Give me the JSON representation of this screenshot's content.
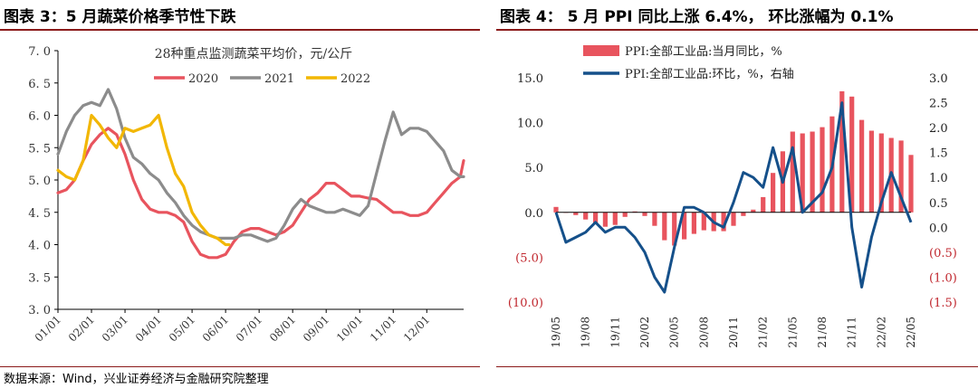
{
  "figures": [
    {
      "title": "图表 3：5 月蔬菜价格季节性下跌",
      "chart_data": {
        "type": "line",
        "title": "28种重点监测蔬菜平均价，元/公斤",
        "xlabel": "",
        "ylabel": "",
        "x_tick_labels": [
          "01/01",
          "02/01",
          "03/01",
          "04/01",
          "05/01",
          "06/01",
          "07/01",
          "08/01",
          "09/01",
          "10/01",
          "11/01",
          "12/01"
        ],
        "y_tick_labels": [
          "3. 0",
          "3. 5",
          "4. 0",
          "4. 5",
          "5. 0",
          "5. 5",
          "6. 0",
          "6. 5",
          "7. 0"
        ],
        "ylim": [
          3.0,
          7.0
        ],
        "legend_position": "top-center",
        "x_unit": "month of year (1 = 01/01)",
        "series": [
          {
            "name": "2020",
            "color": "#e8545e",
            "x": [
              1.0,
              1.25,
              1.5,
              1.75,
              2.0,
              2.25,
              2.5,
              2.75,
              3.0,
              3.25,
              3.5,
              3.75,
              4.0,
              4.25,
              4.5,
              4.75,
              5.0,
              5.25,
              5.5,
              5.75,
              6.0,
              6.25,
              6.5,
              6.75,
              7.0,
              7.25,
              7.5,
              7.75,
              8.0,
              8.25,
              8.5,
              8.75,
              9.0,
              9.25,
              9.5,
              9.75,
              10.0,
              10.25,
              10.5,
              10.75,
              11.0,
              11.25,
              11.5,
              11.75,
              12.0,
              12.25,
              12.5,
              12.75,
              13.0,
              13.1
            ],
            "values": [
              4.8,
              4.85,
              5.0,
              5.3,
              5.55,
              5.7,
              5.8,
              5.7,
              5.4,
              5.0,
              4.7,
              4.55,
              4.5,
              4.5,
              4.45,
              4.35,
              4.05,
              3.85,
              3.8,
              3.8,
              3.85,
              4.05,
              4.2,
              4.25,
              4.25,
              4.2,
              4.15,
              4.2,
              4.3,
              4.5,
              4.7,
              4.8,
              4.95,
              4.95,
              4.85,
              4.75,
              4.75,
              4.72,
              4.7,
              4.6,
              4.5,
              4.5,
              4.45,
              4.45,
              4.5,
              4.65,
              4.8,
              4.95,
              5.05,
              5.3
            ]
          },
          {
            "name": "2021",
            "color": "#8c8c8c",
            "x": [
              1.0,
              1.25,
              1.5,
              1.75,
              2.0,
              2.25,
              2.5,
              2.75,
              3.0,
              3.25,
              3.5,
              3.75,
              4.0,
              4.25,
              4.5,
              4.75,
              5.0,
              5.25,
              5.5,
              5.75,
              6.0,
              6.25,
              6.5,
              6.75,
              7.0,
              7.25,
              7.5,
              7.75,
              8.0,
              8.25,
              8.5,
              8.75,
              9.0,
              9.25,
              9.5,
              9.75,
              10.0,
              10.25,
              10.5,
              10.75,
              11.0,
              11.25,
              11.5,
              11.75,
              12.0,
              12.25,
              12.5,
              12.75,
              13.0,
              13.1
            ],
            "values": [
              5.4,
              5.75,
              6.0,
              6.15,
              6.2,
              6.15,
              6.4,
              6.1,
              5.65,
              5.35,
              5.25,
              5.1,
              5.0,
              4.8,
              4.65,
              4.45,
              4.3,
              4.2,
              4.15,
              4.1,
              4.1,
              4.1,
              4.15,
              4.15,
              4.1,
              4.05,
              4.1,
              4.3,
              4.55,
              4.7,
              4.6,
              4.55,
              4.5,
              4.5,
              4.55,
              4.5,
              4.45,
              4.6,
              5.1,
              5.6,
              6.05,
              5.7,
              5.8,
              5.8,
              5.75,
              5.6,
              5.45,
              5.15,
              5.05,
              5.05
            ]
          },
          {
            "name": "2022",
            "color": "#f2b705",
            "x": [
              1.0,
              1.25,
              1.5,
              1.75,
              2.0,
              2.25,
              2.5,
              2.75,
              3.0,
              3.25,
              3.5,
              3.75,
              4.0,
              4.25,
              4.5,
              4.75,
              5.0,
              5.25,
              5.5,
              5.75,
              6.0,
              6.1
            ],
            "values": [
              5.15,
              5.05,
              5.0,
              5.3,
              6.0,
              5.85,
              5.65,
              5.5,
              5.8,
              5.75,
              5.8,
              5.85,
              6.0,
              5.5,
              5.1,
              4.9,
              4.5,
              4.3,
              4.15,
              4.1,
              4.0,
              4.0
            ]
          }
        ]
      }
    },
    {
      "title": "图表 4： 5 月 PPI 同比上涨 6.4%， 环比涨幅为 0.1%",
      "chart_data": {
        "type": "bar+line",
        "title": "",
        "x_tick_labels": [
          "19/05",
          "19/08",
          "19/11",
          "20/02",
          "20/05",
          "20/08",
          "20/11",
          "21/02",
          "21/05",
          "21/08",
          "21/11",
          "22/02",
          "22/05"
        ],
        "left_y_tick_labels": [
          "15.0",
          "10.0",
          "5.0",
          "0.0",
          "(5.0)",
          "(10.0)"
        ],
        "right_y_tick_labels": [
          "3.0",
          "2.5",
          "2.0",
          "1.5",
          "1.0",
          "0.5",
          "0.0",
          "(0.5)",
          "(1.0)",
          "(1.5)"
        ],
        "ylim_left": [
          -10,
          15
        ],
        "ylim_right": [
          -1.5,
          3.0
        ],
        "legend_position": "top-left",
        "categories": [
          "19/05",
          "19/06",
          "19/07",
          "19/08",
          "19/09",
          "19/10",
          "19/11",
          "19/12",
          "20/01",
          "20/02",
          "20/03",
          "20/04",
          "20/05",
          "20/06",
          "20/07",
          "20/08",
          "20/09",
          "20/10",
          "20/11",
          "20/12",
          "21/01",
          "21/02",
          "21/03",
          "21/04",
          "21/05",
          "21/06",
          "21/07",
          "21/08",
          "21/09",
          "21/10",
          "21/11",
          "21/12",
          "22/01",
          "22/02",
          "22/03",
          "22/04",
          "22/05"
        ],
        "series": [
          {
            "name": "PPI:全部工业品:当月同比，%",
            "axis": "left",
            "kind": "bar",
            "color": "#e8545e",
            "values": [
              0.6,
              0.0,
              -0.3,
              -0.8,
              -1.2,
              -1.6,
              -1.4,
              -0.5,
              0.1,
              -0.4,
              -1.5,
              -3.1,
              -3.7,
              -3.0,
              -2.4,
              -2.0,
              -2.1,
              -2.1,
              -1.5,
              -0.4,
              0.3,
              1.7,
              4.4,
              6.8,
              9.0,
              8.8,
              9.0,
              9.5,
              10.7,
              13.5,
              12.9,
              10.3,
              9.1,
              8.8,
              8.3,
              8.0,
              6.4
            ]
          },
          {
            "name": "PPI:全部工业品:环比，%，右轴",
            "axis": "right",
            "kind": "line",
            "color": "#15508a",
            "values": [
              0.3,
              -0.3,
              -0.2,
              -0.1,
              0.1,
              -0.1,
              0.0,
              0.0,
              -0.2,
              -0.5,
              -1.0,
              -1.3,
              -0.4,
              0.4,
              0.4,
              0.3,
              0.1,
              0.0,
              0.5,
              1.1,
              1.0,
              0.8,
              1.6,
              0.9,
              1.6,
              0.3,
              0.5,
              0.7,
              1.2,
              2.5,
              0.0,
              -1.2,
              -0.2,
              0.5,
              1.1,
              0.6,
              0.1
            ]
          }
        ]
      }
    }
  ],
  "source": "数据来源：Wind，兴业证券经济与金融研究院整理"
}
